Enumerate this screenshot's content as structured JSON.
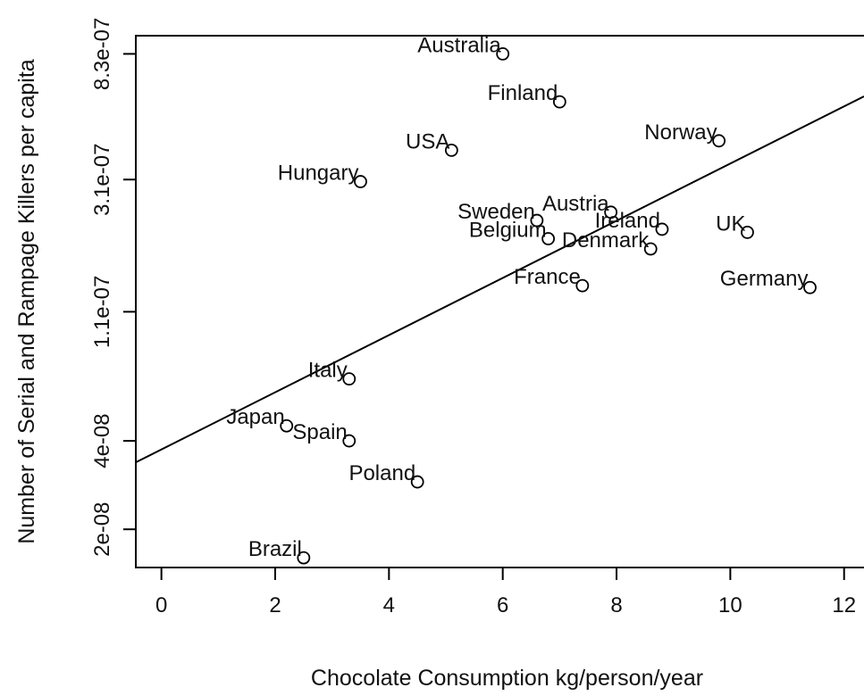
{
  "chart_data": {
    "type": "scatter",
    "xlabel": "Chocolate Consumption kg/person/year",
    "ylabel": "Number of Serial and Rampage Killers per capita",
    "xlim": [
      -0.45,
      12.35
    ],
    "ylim_log10": [
      -7.829,
      -6.019
    ],
    "y_scale": "log",
    "grid": false,
    "x_ticks": [
      0,
      2,
      4,
      6,
      8,
      10,
      12
    ],
    "x_tick_labels": [
      "0",
      "2",
      "4",
      "6",
      "8",
      "10",
      "12"
    ],
    "y_ticks": [
      2e-08,
      4e-08,
      1.1e-07,
      3.1e-07,
      8.3e-07
    ],
    "y_tick_labels": [
      "2e-08",
      "4e-08",
      "1.1e-07",
      "3.1e-07",
      "8.3e-07"
    ],
    "points": [
      {
        "label": "Australia",
        "x": 6.0,
        "y": 8.3e-07
      },
      {
        "label": "Finland",
        "x": 7.0,
        "y": 5.7e-07
      },
      {
        "label": "USA",
        "x": 5.1,
        "y": 3.9e-07
      },
      {
        "label": "Norway",
        "x": 9.8,
        "y": 4.2e-07
      },
      {
        "label": "Hungary",
        "x": 3.5,
        "y": 3.05e-07
      },
      {
        "label": "Austria",
        "x": 7.9,
        "y": 2.4e-07
      },
      {
        "label": "Sweden",
        "x": 6.6,
        "y": 2.25e-07
      },
      {
        "label": "Ireland",
        "x": 8.8,
        "y": 2.1e-07
      },
      {
        "label": "Belgium",
        "x": 6.8,
        "y": 1.95e-07
      },
      {
        "label": "UK",
        "x": 10.3,
        "y": 2.05e-07
      },
      {
        "label": "Denmark",
        "x": 8.6,
        "y": 1.8e-07
      },
      {
        "label": "France",
        "x": 7.4,
        "y": 1.35e-07
      },
      {
        "label": "Germany",
        "x": 11.4,
        "y": 1.33e-07
      },
      {
        "label": "Italy",
        "x": 3.3,
        "y": 6.5e-08
      },
      {
        "label": "Japan",
        "x": 2.2,
        "y": 4.5e-08
      },
      {
        "label": "Spain",
        "x": 3.3,
        "y": 4e-08
      },
      {
        "label": "Poland",
        "x": 4.5,
        "y": 2.9e-08
      },
      {
        "label": "Brazil",
        "x": 2.5,
        "y": 1.6e-08
      }
    ],
    "fit_line": {
      "x0": -0.45,
      "y0": 3.38e-08,
      "x1": 12.35,
      "y1": 5.95e-07
    }
  }
}
